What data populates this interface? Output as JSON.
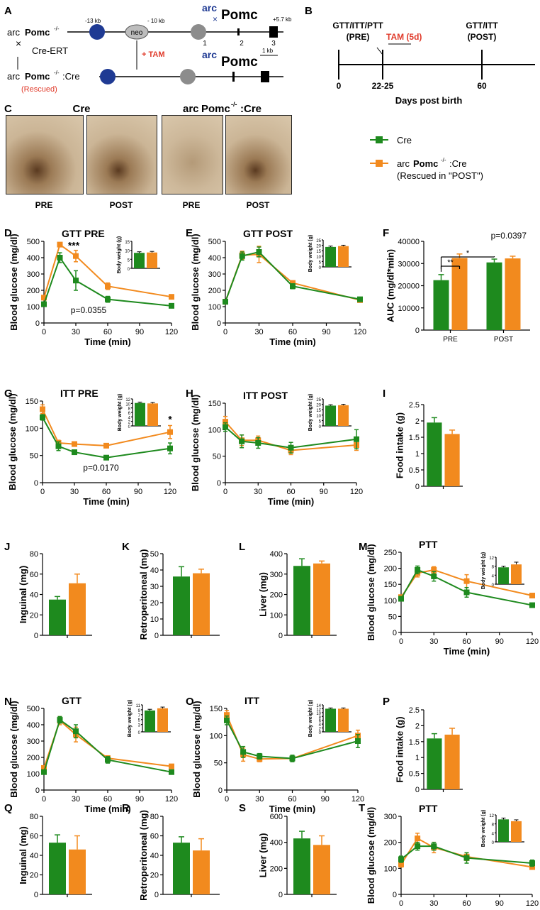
{
  "colors": {
    "cre": "#1e8a1e",
    "arc": "#f28a1e",
    "blue": "#1f3a93",
    "red": "#e03b2b"
  },
  "schematicA": {
    "panel": "A",
    "top_allele_pre": "arc",
    "top_allele_sub": "Pomc",
    "top_allele_sup": "-/-",
    "cross": "×",
    "cre": "Cre-ERT",
    "bottom_allele_pre": "arc",
    "bottom_allele_sub": "Pomc",
    "bottom_allele_sup": "-/-",
    "bottom_suffix": ":Cre",
    "rescued": "(Rescued)",
    "tam": "+ TAM",
    "neo": "neo",
    "kb1": "-13 kb",
    "kb2": "- 10 kb",
    "kb3": "+5.7 kb",
    "exon1": "1",
    "exon2": "2",
    "exon3": "3",
    "gene_arc": "arc",
    "gene_name": "Pomc",
    "scale": "1 kb"
  },
  "timelineB": {
    "panel": "B",
    "pre_label": "GTT/ITT/PTT",
    "pre_sub": "(PRE)",
    "tam": "TAM (5d)",
    "post_label": "GTT/ITT",
    "post_sub": "(POST)",
    "t0": "0",
    "t1": "22-25",
    "t2": "60",
    "xlabel": "Days post birth"
  },
  "histologyC": {
    "panel": "C",
    "group1": "Cre",
    "group2_pre": "arc",
    "group2_sub": "Pomc",
    "group2_sup": "-/-",
    "group2_suffix": ":Cre",
    "labels": [
      "PRE",
      "POST",
      "PRE",
      "POST"
    ]
  },
  "legend": {
    "cre": "Cre",
    "arc_pre": "arc",
    "arc_sub": "Pomc",
    "arc_sup": "-/-",
    "arc_suffix": ":Cre",
    "arc_line2": "(Rescued in \"POST\")"
  },
  "chart_data": [
    {
      "id": "D",
      "type": "line",
      "title": "GTT PRE",
      "xlabel": "Time (min)",
      "ylabel": "Blood glucose (mg/dl)",
      "xlim": [
        0,
        120
      ],
      "ylim": [
        0,
        500
      ],
      "xticks": [
        0,
        30,
        60,
        90,
        120
      ],
      "yticks": [
        0,
        100,
        200,
        300,
        400,
        500
      ],
      "x": [
        0,
        15,
        30,
        60,
        120
      ],
      "series": [
        {
          "name": "Cre",
          "values": [
            115,
            400,
            260,
            145,
            105
          ],
          "err": [
            12,
            30,
            60,
            18,
            8
          ]
        },
        {
          "name": "arcPomc-/-:Cre",
          "values": [
            155,
            480,
            410,
            225,
            160
          ],
          "err": [
            12,
            10,
            35,
            20,
            8
          ]
        }
      ],
      "annotations": [
        {
          "text": "***",
          "x": 28,
          "y": 455
        },
        {
          "text": "p=0.0355",
          "x": 42,
          "y": 60
        }
      ],
      "inset": {
        "ylabel": "Body weight (g)",
        "ylim": [
          0,
          15
        ],
        "yticks": [
          0,
          5,
          10,
          15
        ],
        "values": [
          8.6,
          8.8
        ],
        "err": [
          0.6,
          0.6
        ]
      }
    },
    {
      "id": "E",
      "type": "line",
      "title": "GTT POST",
      "xlabel": "Time (min)",
      "ylabel": "Blood glucose (mg/dl)",
      "xlim": [
        0,
        120
      ],
      "ylim": [
        0,
        500
      ],
      "xticks": [
        0,
        30,
        60,
        90,
        120
      ],
      "yticks": [
        0,
        100,
        200,
        300,
        400,
        500
      ],
      "x": [
        0,
        15,
        30,
        60,
        120
      ],
      "series": [
        {
          "name": "Cre",
          "values": [
            130,
            410,
            435,
            225,
            145
          ],
          "err": [
            10,
            25,
            30,
            15,
            8
          ]
        },
        {
          "name": "arcPomc-/-:Cre",
          "values": [
            130,
            415,
            420,
            245,
            140
          ],
          "err": [
            10,
            25,
            50,
            12,
            8
          ]
        }
      ],
      "annotations": [],
      "inset": {
        "ylabel": "Body weight (g)",
        "ylim": [
          0,
          25
        ],
        "yticks": [
          0,
          5,
          10,
          15,
          20,
          25
        ],
        "values": [
          18.5,
          19.3
        ],
        "err": [
          0.8,
          0.8
        ]
      }
    },
    {
      "id": "F",
      "type": "bar",
      "xlabel": "",
      "ylabel": "AUC (mg/dl*min)",
      "ylim": [
        0,
        40000
      ],
      "yticks": [
        0,
        10000,
        20000,
        30000,
        40000
      ],
      "categories": [
        "PRE",
        "POST"
      ],
      "series": [
        {
          "name": "Cre",
          "values": [
            22500,
            30500
          ],
          "err": [
            2500,
            1500
          ]
        },
        {
          "name": "arcPomc-/-:Cre",
          "values": [
            32500,
            32300
          ],
          "err": [
            1800,
            1000
          ]
        }
      ],
      "annotations": [
        {
          "text": "p=0.0397"
        },
        {
          "text": "**"
        },
        {
          "text": "*"
        }
      ]
    },
    {
      "id": "G",
      "type": "line",
      "title": "ITT PRE",
      "xlabel": "Time (min)",
      "ylabel": "Blood glucose (mg/dl)",
      "xlim": [
        0,
        120
      ],
      "ylim": [
        0,
        150
      ],
      "xticks": [
        0,
        30,
        60,
        90,
        120
      ],
      "yticks": [
        0,
        50,
        100,
        150
      ],
      "x": [
        0,
        15,
        30,
        60,
        120
      ],
      "series": [
        {
          "name": "Cre",
          "values": [
            120,
            67,
            56,
            46,
            63
          ],
          "err": [
            5,
            8,
            3,
            3,
            10
          ]
        },
        {
          "name": "arcPomc-/-:Cre",
          "values": [
            135,
            73,
            71,
            68,
            93
          ],
          "err": [
            8,
            5,
            3,
            3,
            12
          ]
        }
      ],
      "annotations": [
        {
          "text": "*",
          "x": 120,
          "y": 110
        },
        {
          "text": "p=0.0170",
          "x": 55,
          "y": 22
        }
      ],
      "inset": {
        "ylabel": "Body weight (g)",
        "ylim": [
          0,
          12
        ],
        "yticks": [
          0,
          2,
          4,
          6,
          8,
          10,
          12
        ],
        "values": [
          10.2,
          10.0
        ],
        "err": [
          0.4,
          0.4
        ]
      }
    },
    {
      "id": "H",
      "type": "line",
      "title": "ITT POST",
      "xlabel": "Time (min)",
      "ylabel": "Blood glucose (mg/dl)",
      "xlim": [
        0,
        120
      ],
      "ylim": [
        0,
        150
      ],
      "xticks": [
        0,
        30,
        60,
        90,
        120
      ],
      "yticks": [
        0,
        50,
        100,
        150
      ],
      "x": [
        0,
        15,
        30,
        60,
        120
      ],
      "series": [
        {
          "name": "Cre",
          "values": [
            105,
            78,
            75,
            66,
            82
          ],
          "err": [
            8,
            12,
            10,
            10,
            18
          ]
        },
        {
          "name": "arcPomc-/-:Cre",
          "values": [
            115,
            80,
            80,
            61,
            71
          ],
          "err": [
            10,
            10,
            8,
            8,
            10
          ]
        }
      ],
      "annotations": [],
      "inset": {
        "ylabel": "Body weight (g)",
        "ylim": [
          0,
          25
        ],
        "yticks": [
          0,
          5,
          10,
          15,
          20,
          25
        ],
        "values": [
          18.8,
          19.2
        ],
        "err": [
          0.8,
          0.8
        ]
      }
    },
    {
      "id": "I",
      "type": "bar",
      "xlabel": "",
      "ylabel": "Food intake (g)",
      "ylim": [
        0,
        2.5
      ],
      "yticks": [
        0,
        0.5,
        1.0,
        1.5,
        2.0,
        2.5
      ],
      "categories": [
        ""
      ],
      "series": [
        {
          "name": "Cre",
          "values": [
            1.95
          ],
          "err": [
            0.15
          ]
        },
        {
          "name": "arcPomc-/-:Cre",
          "values": [
            1.6
          ],
          "err": [
            0.12
          ]
        }
      ],
      "annotations": []
    },
    {
      "id": "J",
      "type": "bar",
      "xlabel": "",
      "ylabel": "Inguinal (mg)",
      "ylim": [
        0,
        80
      ],
      "yticks": [
        0,
        20,
        40,
        60,
        80
      ],
      "categories": [
        ""
      ],
      "series": [
        {
          "name": "Cre",
          "values": [
            35
          ],
          "err": [
            3
          ]
        },
        {
          "name": "arcPomc-/-:Cre",
          "values": [
            51
          ],
          "err": [
            9
          ]
        }
      ],
      "annotations": []
    },
    {
      "id": "K",
      "type": "bar",
      "xlabel": "",
      "ylabel": "Retroperitoneal (mg)",
      "ylim": [
        0,
        50
      ],
      "yticks": [
        0,
        10,
        20,
        30,
        40,
        50
      ],
      "categories": [
        ""
      ],
      "series": [
        {
          "name": "Cre",
          "values": [
            36
          ],
          "err": [
            6
          ]
        },
        {
          "name": "arcPomc-/-:Cre",
          "values": [
            38
          ],
          "err": [
            2.5
          ]
        }
      ],
      "annotations": []
    },
    {
      "id": "L",
      "type": "bar",
      "xlabel": "",
      "ylabel": "Liver (mg)",
      "ylim": [
        0,
        400
      ],
      "yticks": [
        0,
        100,
        200,
        300,
        400
      ],
      "categories": [
        ""
      ],
      "series": [
        {
          "name": "Cre",
          "values": [
            340
          ],
          "err": [
            35
          ]
        },
        {
          "name": "arcPomc-/-:Cre",
          "values": [
            352
          ],
          "err": [
            12
          ]
        }
      ],
      "annotations": []
    },
    {
      "id": "M",
      "type": "line",
      "title": "PTT",
      "xlabel": "Time (min)",
      "ylabel": "Blood glucose (mg/dl)",
      "xlim": [
        0,
        120
      ],
      "ylim": [
        0,
        250
      ],
      "xticks": [
        0,
        30,
        60,
        90,
        120
      ],
      "yticks": [
        0,
        50,
        100,
        150,
        200,
        250
      ],
      "x": [
        0,
        15,
        30,
        60,
        120
      ],
      "series": [
        {
          "name": "Cre",
          "values": [
            105,
            195,
            175,
            125,
            85
          ],
          "err": [
            5,
            12,
            15,
            15,
            5
          ]
        },
        {
          "name": "arcPomc-/-:Cre",
          "values": [
            110,
            185,
            195,
            160,
            115
          ],
          "err": [
            5,
            12,
            10,
            20,
            5
          ]
        }
      ],
      "annotations": [],
      "inset": {
        "ylabel": "Body weight (g)",
        "ylim": [
          0,
          12
        ],
        "yticks": [
          0,
          4,
          8,
          12
        ],
        "values": [
          7.5,
          8.8
        ],
        "err": [
          0.5,
          1.0
        ]
      }
    },
    {
      "id": "N",
      "type": "line",
      "title": "GTT",
      "xlabel": "Time (min)",
      "ylabel": "Blood glucose (mg/dl)",
      "xlim": [
        0,
        120
      ],
      "ylim": [
        0,
        500
      ],
      "xticks": [
        0,
        30,
        60,
        90,
        120
      ],
      "yticks": [
        0,
        100,
        200,
        300,
        400,
        500
      ],
      "x": [
        0,
        15,
        30,
        60,
        120
      ],
      "series": [
        {
          "name": "Cre",
          "values": [
            110,
            430,
            360,
            185,
            110
          ],
          "err": [
            8,
            20,
            40,
            20,
            8
          ]
        },
        {
          "name": "arcPomc-/-:Cre",
          "values": [
            135,
            425,
            340,
            195,
            145
          ],
          "err": [
            8,
            25,
            45,
            15,
            8
          ]
        }
      ],
      "annotations": [],
      "inset": {
        "ylabel": "Body weight (g)",
        "ylim": [
          0,
          11
        ],
        "yticks": [
          0,
          3,
          5,
          7,
          9,
          11
        ],
        "values": [
          8.7,
          9.6
        ],
        "err": [
          0.5,
          0.5
        ]
      }
    },
    {
      "id": "O",
      "type": "line",
      "title": "ITT",
      "xlabel": "Time (min)",
      "ylabel": "Blood glucose (mg/dl)",
      "xlim": [
        0,
        120
      ],
      "ylim": [
        0,
        150
      ],
      "xticks": [
        0,
        30,
        60,
        90,
        120
      ],
      "yticks": [
        0,
        50,
        100,
        150
      ],
      "x": [
        0,
        15,
        30,
        60,
        120
      ],
      "series": [
        {
          "name": "Cre",
          "values": [
            128,
            70,
            62,
            58,
            90
          ],
          "err": [
            8,
            10,
            5,
            6,
            12
          ]
        },
        {
          "name": "arcPomc-/-:Cre",
          "values": [
            138,
            65,
            57,
            58,
            100
          ],
          "err": [
            8,
            12,
            5,
            5,
            10
          ]
        }
      ],
      "annotations": [],
      "inset": {
        "ylabel": "Body weight (g)",
        "ylim": [
          0,
          14
        ],
        "yticks": [
          0,
          2,
          4,
          6,
          8,
          10,
          12,
          14
        ],
        "values": [
          12.0,
          12.0
        ],
        "err": [
          0.4,
          0.4
        ]
      }
    },
    {
      "id": "P",
      "type": "bar",
      "xlabel": "",
      "ylabel": "Food intake (g)",
      "ylim": [
        0,
        2.5
      ],
      "yticks": [
        0,
        0.5,
        1.0,
        1.5,
        2.0,
        2.5
      ],
      "categories": [
        ""
      ],
      "series": [
        {
          "name": "Cre",
          "values": [
            1.6
          ],
          "err": [
            0.15
          ]
        },
        {
          "name": "arcPomc-/-:Cre",
          "values": [
            1.72
          ],
          "err": [
            0.2
          ]
        }
      ],
      "annotations": []
    },
    {
      "id": "Q",
      "type": "bar",
      "xlabel": "",
      "ylabel": "Inguinal (mg)",
      "ylim": [
        0,
        80
      ],
      "yticks": [
        0,
        20,
        40,
        60,
        80
      ],
      "categories": [
        ""
      ],
      "series": [
        {
          "name": "Cre",
          "values": [
            53
          ],
          "err": [
            8
          ]
        },
        {
          "name": "arcPomc-/-:Cre",
          "values": [
            46
          ],
          "err": [
            14
          ]
        }
      ],
      "annotations": []
    },
    {
      "id": "R",
      "type": "bar",
      "xlabel": "",
      "ylabel": "Retroperitoneal (mg)",
      "ylim": [
        0,
        80
      ],
      "yticks": [
        0,
        20,
        40,
        60,
        80
      ],
      "categories": [
        ""
      ],
      "series": [
        {
          "name": "Cre",
          "values": [
            53
          ],
          "err": [
            6
          ]
        },
        {
          "name": "arcPomc-/-:Cre",
          "values": [
            45
          ],
          "err": [
            12
          ]
        }
      ],
      "annotations": []
    },
    {
      "id": "S",
      "type": "bar",
      "xlabel": "",
      "ylabel": "Liver (mg)",
      "ylim": [
        0,
        600
      ],
      "yticks": [
        0,
        200,
        400,
        600
      ],
      "categories": [
        ""
      ],
      "series": [
        {
          "name": "Cre",
          "values": [
            430
          ],
          "err": [
            55
          ]
        },
        {
          "name": "arcPomc-/-:Cre",
          "values": [
            380
          ],
          "err": [
            70
          ]
        }
      ],
      "annotations": []
    },
    {
      "id": "T",
      "type": "line",
      "title": "PTT",
      "xlabel": "",
      "ylabel": "Blood glucose (mg/dl)",
      "xlim": [
        0,
        120
      ],
      "ylim": [
        0,
        300
      ],
      "xticks": [
        0,
        30,
        60,
        90,
        120
      ],
      "yticks": [
        0,
        100,
        200,
        300
      ],
      "x": [
        0,
        15,
        30,
        60,
        120
      ],
      "series": [
        {
          "name": "Cre",
          "values": [
            135,
            185,
            185,
            140,
            120
          ],
          "err": [
            12,
            15,
            15,
            20,
            12
          ]
        },
        {
          "name": "arcPomc-/-:Cre",
          "values": [
            115,
            215,
            180,
            145,
            105
          ],
          "err": [
            10,
            20,
            20,
            15,
            8
          ]
        }
      ],
      "annotations": [],
      "inset": {
        "ylabel": "Body weight (g)",
        "ylim": [
          0,
          12
        ],
        "yticks": [
          0,
          4,
          8,
          12
        ],
        "values": [
          10.0,
          9.2
        ],
        "err": [
          0.6,
          0.6
        ]
      }
    }
  ]
}
